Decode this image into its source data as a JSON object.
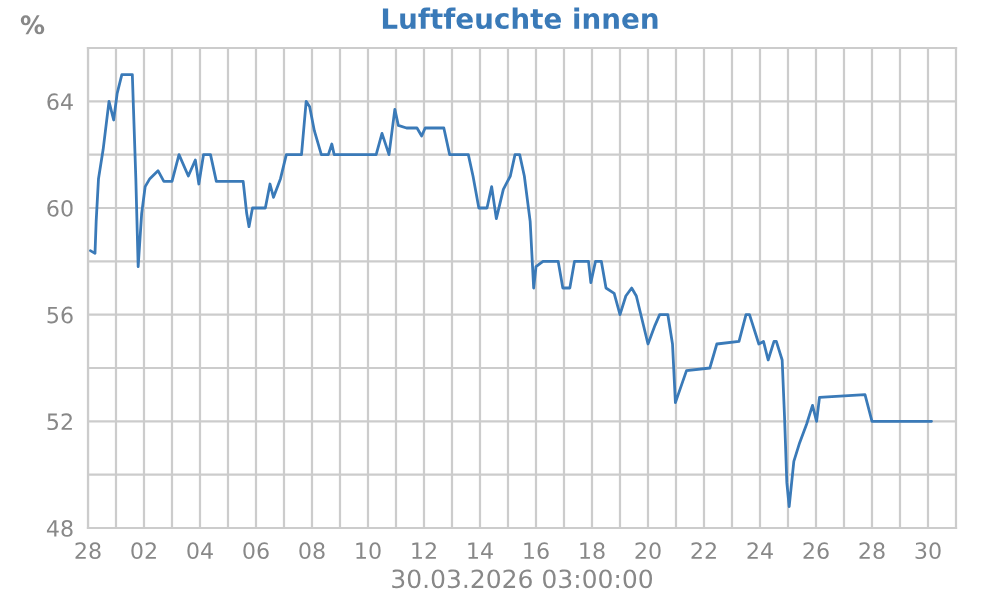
{
  "chart_data": {
    "type": "line",
    "title": "Luftfeuchte innen",
    "ylabel": "%",
    "xlabel": "30.03.2026 03:00:00",
    "x": [
      "2026-02-28T02:00",
      "2026-02-28T06:00",
      "2026-02-28T07:00",
      "2026-02-28T09:00",
      "2026-02-28T13:00",
      "2026-02-28T18:00",
      "2026-02-28T22:00",
      "2026-03-01T01:00",
      "2026-03-01T05:00",
      "2026-03-01T14:00",
      "2026-03-01T15:00",
      "2026-03-01T17:00",
      "2026-03-01T19:00",
      "2026-03-01T22:00",
      "2026-03-02T01:00",
      "2026-03-02T05:00",
      "2026-03-02T12:00",
      "2026-03-02T17:00",
      "2026-03-03T00:00",
      "2026-03-03T06:00",
      "2026-03-03T14:00",
      "2026-03-03T20:00",
      "2026-03-03T23:00",
      "2026-03-04T03:00",
      "2026-03-04T09:00",
      "2026-03-04T14:00",
      "2026-03-05T13:00",
      "2026-03-05T16:00",
      "2026-03-05T18:00",
      "2026-03-05T21:00",
      "2026-03-06T08:00",
      "2026-03-06T12:00",
      "2026-03-06T15:00",
      "2026-03-06T21:00",
      "2026-03-07T02:00",
      "2026-03-07T15:00",
      "2026-03-07T19:00",
      "2026-03-07T22:00",
      "2026-03-08T02:00",
      "2026-03-08T08:00",
      "2026-03-08T14:00",
      "2026-03-08T17:00",
      "2026-03-08T19:00",
      "2026-03-10T07:00",
      "2026-03-10T12:00",
      "2026-03-10T18:00",
      "2026-03-10T23:00",
      "2026-03-11T02:00",
      "2026-03-11T09:00",
      "2026-03-11T18:00",
      "2026-03-11T22:00",
      "2026-03-12T01:00",
      "2026-03-12T17:00",
      "2026-03-12T22:00",
      "2026-03-13T14:00",
      "2026-03-13T18:00",
      "2026-03-13T23:00",
      "2026-03-14T06:00",
      "2026-03-14T10:00",
      "2026-03-14T14:00",
      "2026-03-14T20:00",
      "2026-03-15T02:00",
      "2026-03-15T06:00",
      "2026-03-15T10:00",
      "2026-03-15T14:00",
      "2026-03-15T19:00",
      "2026-03-15T22:00",
      "2026-03-16T00:00",
      "2026-03-16T06:00",
      "2026-03-16T19:00",
      "2026-03-16T23:00",
      "2026-03-17T05:00",
      "2026-03-17T09:00",
      "2026-03-17T21:00",
      "2026-03-17T23:00",
      "2026-03-18T03:00",
      "2026-03-18T08:00",
      "2026-03-18T12:00",
      "2026-03-18T19:00",
      "2026-03-19T00:00",
      "2026-03-19T05:00",
      "2026-03-19T10:00",
      "2026-03-19T14:00",
      "2026-03-20T00:00",
      "2026-03-20T06:00",
      "2026-03-20T10:00",
      "2026-03-20T17:00",
      "2026-03-20T21:00",
      "2026-03-20T23:30",
      "2026-03-21T09:00",
      "2026-03-22T05:00",
      "2026-03-22T11:00",
      "2026-03-23T06:00",
      "2026-03-23T12:00",
      "2026-03-23T15:00",
      "2026-03-23T23:00",
      "2026-03-24T03:00",
      "2026-03-24T07:00",
      "2026-03-24T12:00",
      "2026-03-24T14:00",
      "2026-03-24T19:00",
      "2026-03-24T21:00",
      "2026-03-24T23:00",
      "2026-03-25T01:00",
      "2026-03-25T05:00",
      "2026-03-25T10:00",
      "2026-03-25T16:00",
      "2026-03-25T21:00",
      "2026-03-26T00:30",
      "2026-03-26T03:00",
      "2026-03-27T18:00",
      "2026-03-28T00:00",
      "2026-03-30T03:00"
    ],
    "series": [
      {
        "color": "#3a7ab8",
        "values": [
          58.4,
          58.3,
          59.5,
          61.1,
          62.2,
          64.0,
          63.3,
          64.3,
          65.0,
          65.0,
          63.7,
          61.1,
          57.8,
          59.8,
          60.8,
          61.1,
          61.4,
          61.0,
          61.0,
          62.0,
          61.2,
          61.8,
          60.9,
          62.0,
          62.0,
          61.0,
          61.0,
          59.8,
          59.3,
          60.0,
          60.0,
          60.9,
          60.4,
          61.1,
          62.0,
          62.0,
          64.0,
          63.8,
          62.9,
          62.0,
          62.0,
          62.4,
          62.0,
          62.0,
          62.8,
          62.0,
          63.7,
          63.1,
          63.0,
          63.0,
          62.7,
          63.0,
          63.0,
          62.0,
          62.0,
          61.2,
          60.0,
          60.0,
          60.8,
          59.6,
          60.7,
          61.2,
          62.0,
          62.0,
          61.2,
          59.5,
          57.0,
          57.8,
          58.0,
          58.0,
          57.0,
          57.0,
          58.0,
          58.0,
          57.2,
          58.0,
          58.0,
          57.0,
          56.8,
          56.0,
          56.7,
          57.0,
          56.7,
          54.9,
          55.6,
          56.0,
          56.0,
          54.9,
          52.7,
          53.9,
          54.0,
          54.9,
          55.0,
          56.0,
          56.0,
          54.9,
          55.0,
          54.3,
          55.0,
          55.0,
          54.3,
          52.2,
          49.7,
          48.8,
          50.5,
          51.2,
          51.9,
          52.6,
          52.0,
          52.9,
          53.0,
          52.0,
          52.0
        ]
      }
    ],
    "xlim": [
      "2026-02-28",
      "2026-03-31"
    ],
    "xticks": [
      {
        "value": "2026-02-28",
        "label": "28"
      },
      {
        "value": "2026-03-01",
        "label": null
      },
      {
        "value": "2026-03-02",
        "label": "02"
      },
      {
        "value": "2026-03-03",
        "label": null
      },
      {
        "value": "2026-03-04",
        "label": "04"
      },
      {
        "value": "2026-03-05",
        "label": null
      },
      {
        "value": "2026-03-06",
        "label": "06"
      },
      {
        "value": "2026-03-07",
        "label": null
      },
      {
        "value": "2026-03-08",
        "label": "08"
      },
      {
        "value": "2026-03-09",
        "label": null
      },
      {
        "value": "2026-03-10",
        "label": "10"
      },
      {
        "value": "2026-03-11",
        "label": null
      },
      {
        "value": "2026-03-12",
        "label": "12"
      },
      {
        "value": "2026-03-13",
        "label": null
      },
      {
        "value": "2026-03-14",
        "label": "14"
      },
      {
        "value": "2026-03-15",
        "label": null
      },
      {
        "value": "2026-03-16",
        "label": "16"
      },
      {
        "value": "2026-03-17",
        "label": null
      },
      {
        "value": "2026-03-18",
        "label": "18"
      },
      {
        "value": "2026-03-19",
        "label": null
      },
      {
        "value": "2026-03-20",
        "label": "20"
      },
      {
        "value": "2026-03-21",
        "label": null
      },
      {
        "value": "2026-03-22",
        "label": "22"
      },
      {
        "value": "2026-03-23",
        "label": null
      },
      {
        "value": "2026-03-24",
        "label": "24"
      },
      {
        "value": "2026-03-25",
        "label": null
      },
      {
        "value": "2026-03-26",
        "label": "26"
      },
      {
        "value": "2026-03-27",
        "label": null
      },
      {
        "value": "2026-03-28",
        "label": "28"
      },
      {
        "value": "2026-03-29",
        "label": null
      },
      {
        "value": "2026-03-30",
        "label": "30"
      }
    ],
    "ylim": [
      48,
      66
    ],
    "yticks": [
      48,
      {
        "value": 50,
        "label": null
      },
      52,
      {
        "value": 54,
        "label": null
      },
      56,
      {
        "value": 58,
        "label": null
      },
      60,
      {
        "value": 62,
        "label": null
      },
      64,
      {
        "value": 66,
        "label": null
      }
    ],
    "grid": true,
    "legend": false,
    "marker": "none",
    "line_style": "solid"
  }
}
